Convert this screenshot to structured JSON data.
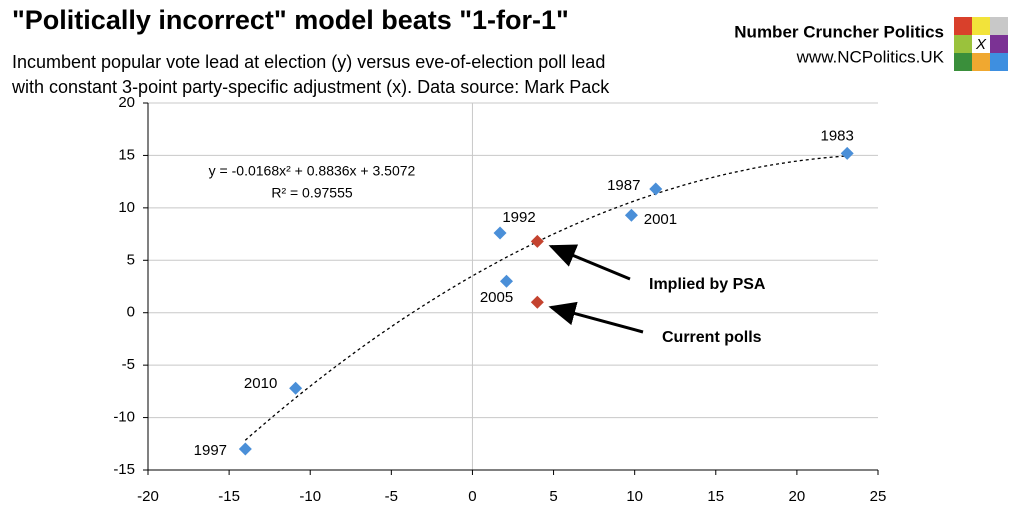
{
  "chart_data": {
    "type": "scatter",
    "title": "\"Politically incorrect\" model beats \"1-for-1\"",
    "subtitle": [
      "Incumbent popular vote lead at election (y) versus eve-of-election poll lead",
      "with constant 3-point party-specific adjustment (x). Data source: Mark Pack"
    ],
    "brand": {
      "name": "Number Cruncher Politics",
      "url": "www.NCPolitics.UK",
      "logo_text": "X"
    },
    "series": [
      {
        "color": "#4a8fd8",
        "x": [
          23.1,
          11.3,
          9.8,
          1.7,
          2.1,
          -10.9,
          -14
        ],
        "values": [
          15.2,
          11.8,
          9.3,
          7.6,
          3.0,
          -7.2,
          -13
        ],
        "labels": [
          "1983",
          "1987",
          "2001",
          "1992",
          "2005",
          "2010",
          "1997"
        ]
      },
      {
        "color": "#c4432f",
        "x": [
          4,
          4
        ],
        "values": [
          6.8,
          1.0
        ],
        "labels": [
          "Implied by PSA",
          "Current polls"
        ]
      }
    ],
    "trendline": {
      "coefficients": [
        -0.0168,
        0.8836,
        3.5072
      ],
      "equation": "y = -0.0168x² + 0.8836x + 3.5072",
      "r_squared": "R² = 0.97555"
    },
    "xlim": [
      -20,
      25
    ],
    "xticks": [
      -20,
      -15,
      -10,
      -5,
      0,
      5,
      10,
      15,
      20,
      25
    ],
    "ylim": [
      -15,
      20
    ],
    "yticks": [
      -15,
      -10,
      -5,
      0,
      5,
      10,
      15,
      20
    ],
    "grid": true
  }
}
